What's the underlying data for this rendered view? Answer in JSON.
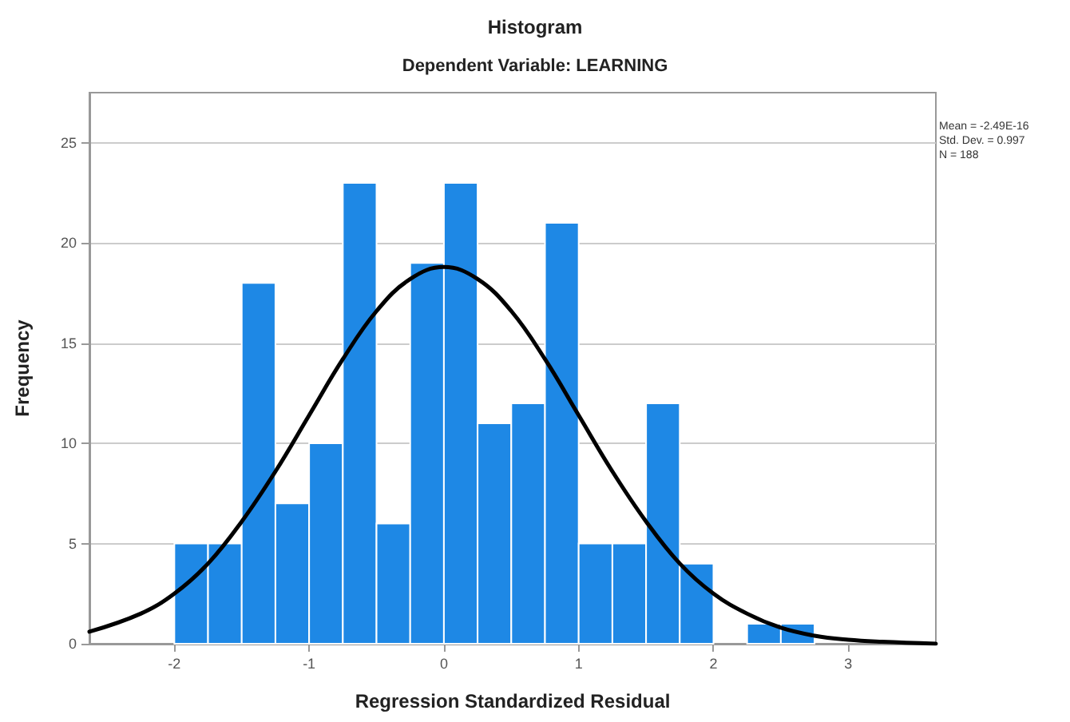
{
  "chart_data": {
    "type": "histogram",
    "title": "Histogram",
    "subtitle": "Dependent Variable: LEARNING",
    "xlabel": "Regression Standardized Residual",
    "ylabel": "Frequency",
    "bins": [
      -2,
      -1.75,
      -1.5,
      -1.25,
      -1,
      -0.75,
      -0.5,
      -0.25,
      0,
      0.25,
      0.5,
      0.75,
      1,
      1.25,
      1.5,
      1.75,
      2,
      2.25,
      2.5,
      2.75
    ],
    "values": [
      5,
      5,
      18,
      7,
      10,
      23,
      6,
      19,
      23,
      11,
      12,
      21,
      5,
      5,
      12,
      4,
      0,
      1,
      1
    ],
    "color": "#1e88e5",
    "series": [
      {
        "type": "line",
        "color": "#000000",
        "x": [
          -2.63,
          -2.25,
          -2,
          -1.75,
          -1.5,
          -1.25,
          -1,
          -0.75,
          -0.5,
          -0.25,
          0,
          0.25,
          0.5,
          0.75,
          1,
          1.25,
          1.5,
          1.75,
          2,
          2.25,
          2.5,
          2.75,
          3,
          3.25,
          3.65
        ],
        "values": [
          0.6,
          1.5,
          2.5,
          4,
          6.1,
          8.6,
          11.4,
          14.2,
          16.6,
          18.2,
          18.8,
          18.2,
          16.6,
          14.2,
          11.4,
          8.6,
          6.1,
          4,
          2.5,
          1.5,
          0.8,
          0.4,
          0.2,
          0.1,
          0
        ]
      }
    ],
    "xlim": [
      -2.63,
      3.65
    ],
    "xticks": [
      -2,
      -1,
      0,
      1,
      2,
      3
    ],
    "ylim": [
      0,
      27.5
    ],
    "yticks": [
      0,
      5,
      10,
      15,
      20,
      25
    ],
    "grid": "y",
    "marker": "none",
    "annotations": [
      "Mean = -2.49E-16",
      "Std. Dev. = 0.997",
      "N = 188"
    ]
  }
}
